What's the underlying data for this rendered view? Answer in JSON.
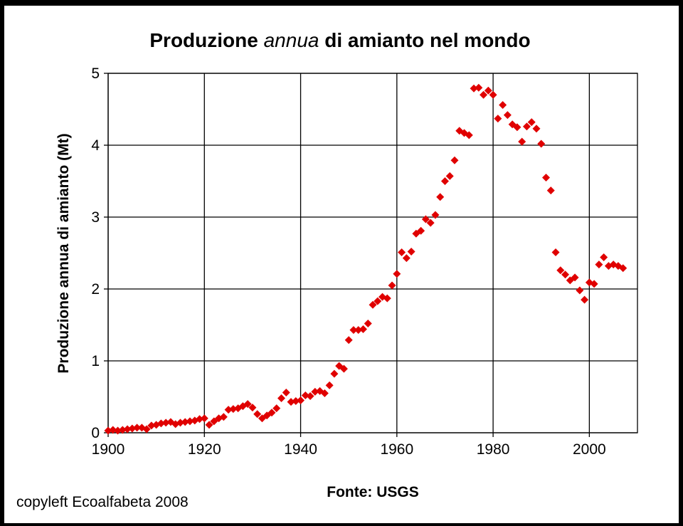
{
  "chart_data": {
    "type": "scatter",
    "title_parts": [
      "Produzione ",
      "annua",
      " di amianto nel mondo"
    ],
    "xlabel": "Fonte: USGS",
    "ylabel": "Produzione annua di amianto (Mt)",
    "xlim": [
      1900,
      2010
    ],
    "ylim": [
      0,
      5
    ],
    "xticks": [
      1900,
      1920,
      1940,
      1960,
      1980,
      2000
    ],
    "yticks": [
      0,
      1,
      2,
      3,
      4,
      5
    ],
    "grid": true,
    "marker": "diamond",
    "marker_color": "#e00000",
    "series": [
      {
        "x": [
          1900,
          1901,
          1902,
          1903,
          1904,
          1905,
          1906,
          1907,
          1908,
          1909,
          1910,
          1911,
          1912,
          1913,
          1914,
          1915,
          1916,
          1917,
          1918,
          1919,
          1920,
          1921,
          1922,
          1923,
          1924,
          1925,
          1926,
          1927,
          1928,
          1929,
          1930,
          1931,
          1932,
          1933,
          1934,
          1935,
          1936,
          1937,
          1938,
          1939,
          1940,
          1941,
          1942,
          1943,
          1944,
          1945,
          1946,
          1947,
          1948,
          1949,
          1950,
          1951,
          1952,
          1953,
          1954,
          1955,
          1956,
          1957,
          1958,
          1959,
          1960,
          1961,
          1962,
          1963,
          1964,
          1965,
          1966,
          1967,
          1968,
          1969,
          1970,
          1971,
          1972,
          1973,
          1974,
          1975,
          1976,
          1977,
          1978,
          1979,
          1980,
          1981,
          1982,
          1983,
          1984,
          1985,
          1986,
          1987,
          1988,
          1989,
          1990,
          1991,
          1992,
          1993,
          1994,
          1995,
          1996,
          1997,
          1998,
          1999,
          2000,
          2001,
          2002,
          2003,
          2004,
          2005,
          2006,
          2007
        ],
        "y": [
          0.03,
          0.04,
          0.03,
          0.04,
          0.05,
          0.06,
          0.07,
          0.07,
          0.05,
          0.1,
          0.11,
          0.13,
          0.14,
          0.15,
          0.12,
          0.14,
          0.15,
          0.16,
          0.17,
          0.19,
          0.2,
          0.11,
          0.16,
          0.2,
          0.22,
          0.32,
          0.33,
          0.34,
          0.37,
          0.4,
          0.35,
          0.26,
          0.2,
          0.24,
          0.28,
          0.34,
          0.48,
          0.56,
          0.43,
          0.44,
          0.45,
          0.52,
          0.51,
          0.57,
          0.58,
          0.55,
          0.66,
          0.82,
          0.93,
          0.89,
          1.29,
          1.43,
          1.43,
          1.44,
          1.52,
          1.78,
          1.83,
          1.89,
          1.87,
          2.05,
          2.21,
          2.51,
          2.43,
          2.52,
          2.77,
          2.81,
          2.97,
          2.92,
          3.03,
          3.28,
          3.5,
          3.57,
          3.79,
          4.2,
          4.17,
          4.14,
          4.79,
          4.8,
          4.7,
          4.76,
          4.7,
          4.37,
          4.56,
          4.42,
          4.29,
          4.25,
          4.05,
          4.26,
          4.32,
          4.23,
          4.02,
          3.55,
          3.37,
          2.51,
          2.26,
          2.2,
          2.12,
          2.16,
          1.98,
          1.85,
          2.09,
          2.07,
          2.34,
          2.44,
          2.32,
          2.34,
          2.32,
          2.29
        ]
      }
    ]
  },
  "footer": {
    "copyleft": "copyleft Ecoalfabeta 2008"
  }
}
